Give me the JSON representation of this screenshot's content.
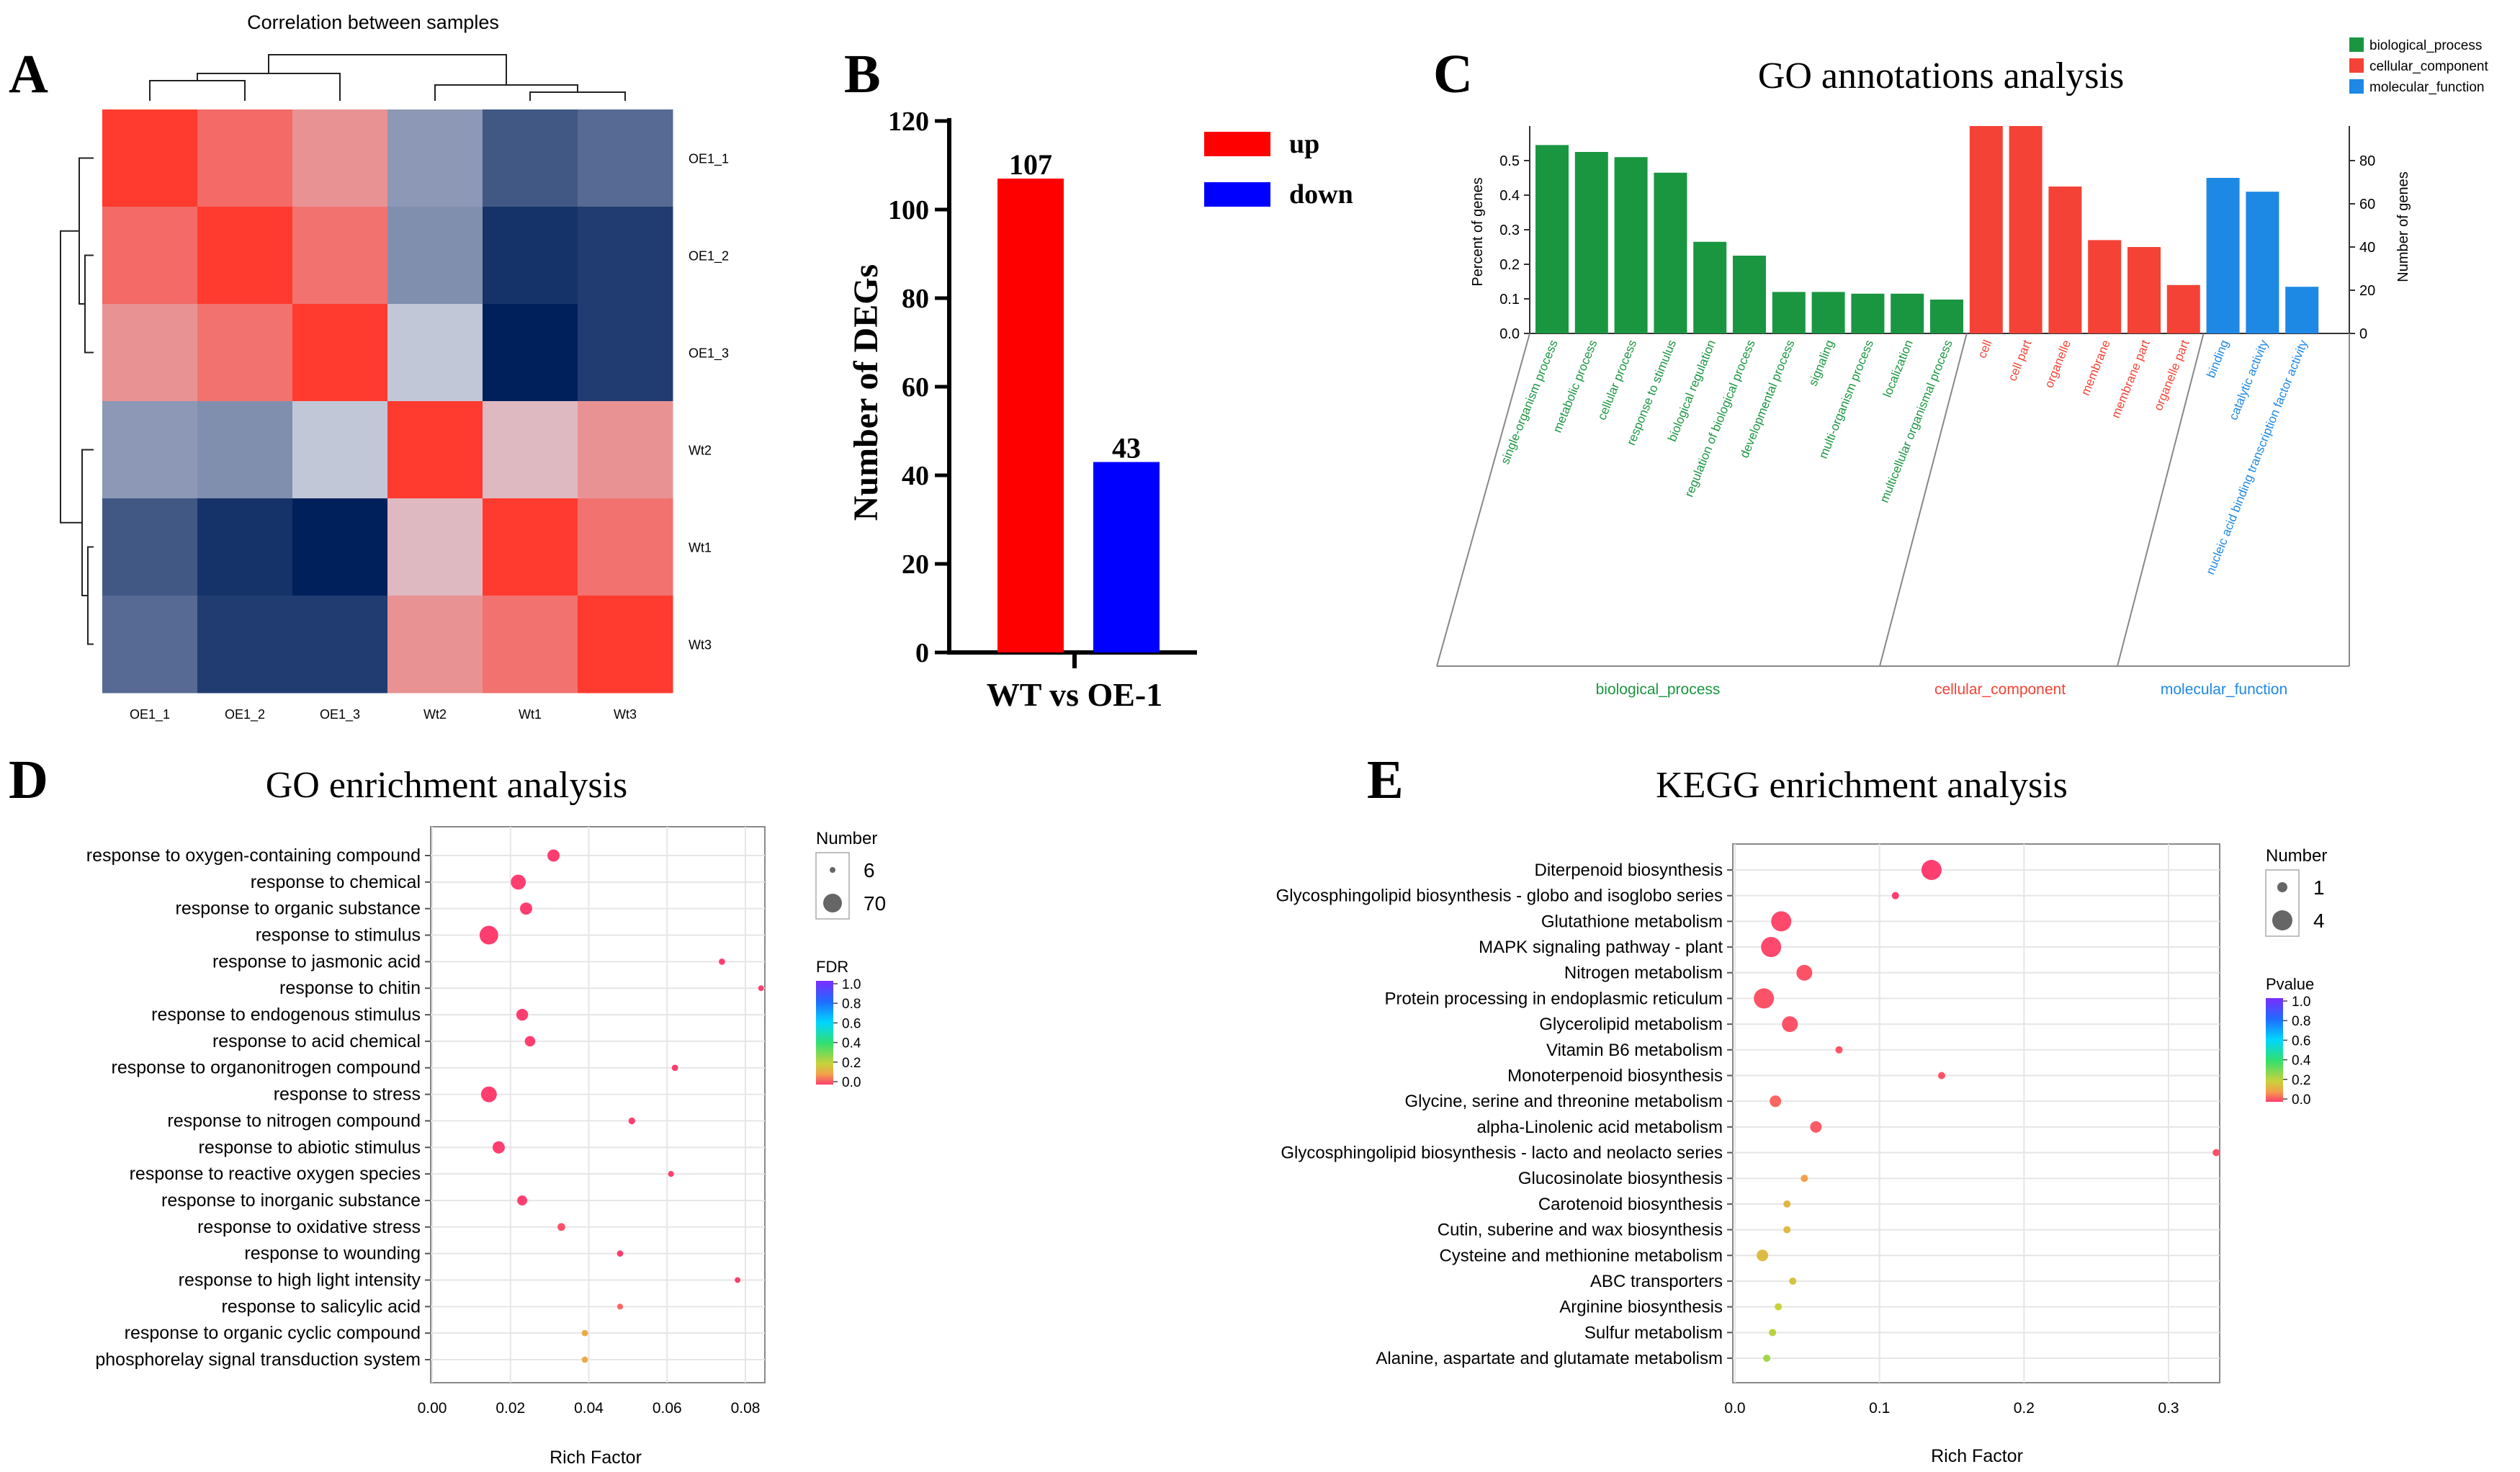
{
  "panels": {
    "A": "A",
    "B": "B",
    "C": "C",
    "D": "D",
    "E": "E"
  },
  "colors": {
    "red": "#ff0000",
    "blue": "#0000ff",
    "bp": "#1a9641",
    "cc": "#f44336",
    "mf": "#1e88e5",
    "heat_low": "#00205b",
    "heat_mid": "#d7d9e6",
    "heat_high": "#ff3b2f"
  },
  "chart_data": [
    {
      "id": "A",
      "type": "heatmap",
      "title": "Correlation between samples",
      "rows": [
        "OE1_1",
        "OE1_2",
        "OE1_3",
        "Wt2",
        "Wt1",
        "Wt3"
      ],
      "cols": [
        "OE1_1",
        "OE1_2",
        "OE1_3",
        "Wt2",
        "Wt1",
        "Wt3"
      ],
      "values": [
        [
          1.0,
          0.7,
          0.45,
          -0.35,
          -0.7,
          -0.6
        ],
        [
          0.7,
          1.0,
          0.65,
          -0.4,
          -0.9,
          -0.85
        ],
        [
          0.45,
          0.65,
          1.0,
          -0.1,
          -1.0,
          -0.85
        ],
        [
          -0.35,
          -0.4,
          -0.1,
          1.0,
          0.2,
          0.45
        ],
        [
          -0.7,
          -0.9,
          -1.0,
          0.2,
          1.0,
          0.65
        ],
        [
          -0.6,
          -0.85,
          -0.85,
          0.45,
          0.65,
          1.0
        ]
      ]
    },
    {
      "id": "B",
      "type": "bar",
      "categories": [
        "WT vs OE-1"
      ],
      "series": [
        {
          "name": "up",
          "values": [
            107
          ],
          "color": "#ff0000"
        },
        {
          "name": "down",
          "values": [
            43
          ],
          "color": "#0000ff"
        }
      ],
      "ylabel": "Number of DEGs",
      "xlabel": "WT vs OE-1",
      "ylim": [
        0,
        120
      ],
      "yticks": [
        0,
        20,
        40,
        60,
        80,
        100,
        120
      ]
    },
    {
      "id": "C",
      "type": "bar",
      "title": "GO annotations analysis",
      "ylabel_left": "Percent of genes",
      "ylabel_right": "Number of genes",
      "ylim_left": [
        0,
        0.6
      ],
      "yticks_left": [
        "0.0",
        "0.1",
        "0.2",
        "0.3",
        "0.4",
        "0.5"
      ],
      "yticks_right": [
        "0",
        "20",
        "40",
        "60",
        "80"
      ],
      "right_max": 96,
      "legend": [
        {
          "name": "biological_process",
          "color": "#1a9641"
        },
        {
          "name": "cellular_component",
          "color": "#f44336"
        },
        {
          "name": "molecular_function",
          "color": "#1e88e5"
        }
      ],
      "groups": [
        {
          "name": "biological_process",
          "color": "#1a9641",
          "categories": [
            {
              "term": "single-organism process",
              "value": 0.545
            },
            {
              "term": "metabolic process",
              "value": 0.525
            },
            {
              "term": "cellular process",
              "value": 0.51
            },
            {
              "term": "response to stimulus",
              "value": 0.465
            },
            {
              "term": "biological regulation",
              "value": 0.265
            },
            {
              "term": "regulation of biological process",
              "value": 0.225
            },
            {
              "term": "developmental process",
              "value": 0.12
            },
            {
              "term": "signaling",
              "value": 0.12
            },
            {
              "term": "multi-organism process",
              "value": 0.115
            },
            {
              "term": "localization",
              "value": 0.115
            },
            {
              "term": "multicellular organismal process",
              "value": 0.098
            }
          ]
        },
        {
          "name": "cellular_component",
          "color": "#f44336",
          "categories": [
            {
              "term": "cell",
              "value": 0.6
            },
            {
              "term": "cell part",
              "value": 0.6
            },
            {
              "term": "organelle",
              "value": 0.425
            },
            {
              "term": "membrane",
              "value": 0.27
            },
            {
              "term": "membrane part",
              "value": 0.25
            },
            {
              "term": "organelle part",
              "value": 0.14
            }
          ]
        },
        {
          "name": "molecular_function",
          "color": "#1e88e5",
          "categories": [
            {
              "term": "binding",
              "value": 0.45
            },
            {
              "term": "catalytic activity",
              "value": 0.41
            },
            {
              "term": "nucleic acid binding transcription factor activity",
              "value": 0.135
            }
          ]
        }
      ]
    },
    {
      "id": "D",
      "type": "scatter",
      "title": "GO enrichment analysis",
      "xlabel": "Rich Factor",
      "xlim": [
        0.0,
        0.085
      ],
      "xticks": [
        "0.00",
        "0.02",
        "0.04",
        "0.06",
        "0.08"
      ],
      "size_legend_title": "Number",
      "size_legend": [
        "6",
        "70"
      ],
      "color_legend_title": "FDR",
      "color_ticks": [
        "1.0",
        "0.8",
        "0.6",
        "0.4",
        "0.2",
        "0.0"
      ],
      "terms": [
        {
          "term": "response to oxygen-containing compound",
          "x": 0.031,
          "n": 30,
          "fdr": 0.0
        },
        {
          "term": "response to chemical",
          "x": 0.022,
          "n": 45,
          "fdr": 0.0
        },
        {
          "term": "response to organic substance",
          "x": 0.024,
          "n": 30,
          "fdr": 0.0
        },
        {
          "term": "response to stimulus",
          "x": 0.0145,
          "n": 70,
          "fdr": 0.0
        },
        {
          "term": "response to jasmonic acid",
          "x": 0.074,
          "n": 8,
          "fdr": 0.0
        },
        {
          "term": "response to chitin",
          "x": 0.084,
          "n": 6,
          "fdr": 0.0
        },
        {
          "term": "response to endogenous stimulus",
          "x": 0.023,
          "n": 28,
          "fdr": 0.0
        },
        {
          "term": "response to acid chemical",
          "x": 0.025,
          "n": 22,
          "fdr": 0.0
        },
        {
          "term": "response to organonitrogen compound",
          "x": 0.062,
          "n": 8,
          "fdr": 0.0
        },
        {
          "term": "response to stress",
          "x": 0.0145,
          "n": 50,
          "fdr": 0.0
        },
        {
          "term": "response to nitrogen compound",
          "x": 0.051,
          "n": 9,
          "fdr": 0.0
        },
        {
          "term": "response to abiotic stimulus",
          "x": 0.017,
          "n": 30,
          "fdr": 0.0
        },
        {
          "term": "response to reactive oxygen species",
          "x": 0.061,
          "n": 7,
          "fdr": 0.0
        },
        {
          "term": "response to inorganic substance",
          "x": 0.023,
          "n": 20,
          "fdr": 0.0
        },
        {
          "term": "response to oxidative stress",
          "x": 0.033,
          "n": 12,
          "fdr": 0.02
        },
        {
          "term": "response to wounding",
          "x": 0.048,
          "n": 8,
          "fdr": 0.0
        },
        {
          "term": "response to high light intensity",
          "x": 0.078,
          "n": 6,
          "fdr": 0.0
        },
        {
          "term": "response to salicylic acid",
          "x": 0.048,
          "n": 7,
          "fdr": 0.04
        },
        {
          "term": "response to organic cyclic compound",
          "x": 0.039,
          "n": 8,
          "fdr": 0.12
        },
        {
          "term": "phosphorelay signal transduction system",
          "x": 0.039,
          "n": 8,
          "fdr": 0.12
        }
      ]
    },
    {
      "id": "E",
      "type": "scatter",
      "title": "KEGG enrichment analysis",
      "xlabel": "Rich Factor",
      "xlim": [
        0.0,
        0.333
      ],
      "xticks": [
        "0.0",
        "0.1",
        "0.2",
        "0.3"
      ],
      "size_legend_title": "Number",
      "size_legend": [
        "1",
        "4"
      ],
      "color_legend_title": "Pvalue",
      "color_ticks": [
        "1.0",
        "0.8",
        "0.6",
        "0.4",
        "0.2",
        "0.0"
      ],
      "terms": [
        {
          "term": "Diterpenoid biosynthesis",
          "x": 0.136,
          "n": 4,
          "p": 0.0
        },
        {
          "term": "Glycosphingolipid biosynthesis - globo and isoglobo series",
          "x": 0.111,
          "n": 1,
          "p": 0.0
        },
        {
          "term": "Glutathione metabolism",
          "x": 0.032,
          "n": 4,
          "p": 0.01
        },
        {
          "term": "MAPK signaling pathway - plant",
          "x": 0.025,
          "n": 4,
          "p": 0.01
        },
        {
          "term": "Nitrogen metabolism",
          "x": 0.048,
          "n": 3,
          "p": 0.02
        },
        {
          "term": "Protein processing in endoplasmic reticulum",
          "x": 0.02,
          "n": 4,
          "p": 0.02
        },
        {
          "term": "Glycerolipid metabolism",
          "x": 0.038,
          "n": 3,
          "p": 0.02
        },
        {
          "term": "Vitamin B6 metabolism",
          "x": 0.072,
          "n": 1,
          "p": 0.02
        },
        {
          "term": "Monoterpenoid biosynthesis",
          "x": 0.143,
          "n": 1,
          "p": 0.02
        },
        {
          "term": "Glycine, serine and threonine metabolism",
          "x": 0.028,
          "n": 2,
          "p": 0.04
        },
        {
          "term": "alpha-Linolenic acid metabolism",
          "x": 0.056,
          "n": 2,
          "p": 0.03
        },
        {
          "term": "Glycosphingolipid biosynthesis - lacto and neolacto series",
          "x": 0.333,
          "n": 1,
          "p": 0.02
        },
        {
          "term": "Glucosinolate biosynthesis",
          "x": 0.048,
          "n": 1,
          "p": 0.1
        },
        {
          "term": "Carotenoid biosynthesis",
          "x": 0.036,
          "n": 1,
          "p": 0.14
        },
        {
          "term": "Cutin, suberine and wax biosynthesis",
          "x": 0.036,
          "n": 1,
          "p": 0.15
        },
        {
          "term": "Cysteine and methionine metabolism",
          "x": 0.019,
          "n": 2,
          "p": 0.15
        },
        {
          "term": "ABC transporters",
          "x": 0.04,
          "n": 1,
          "p": 0.17
        },
        {
          "term": "Arginine biosynthesis",
          "x": 0.03,
          "n": 1,
          "p": 0.2
        },
        {
          "term": "Sulfur metabolism",
          "x": 0.026,
          "n": 1,
          "p": 0.22
        },
        {
          "term": "Alanine, aspartate and glutamate metabolism",
          "x": 0.022,
          "n": 1,
          "p": 0.25
        }
      ]
    }
  ]
}
